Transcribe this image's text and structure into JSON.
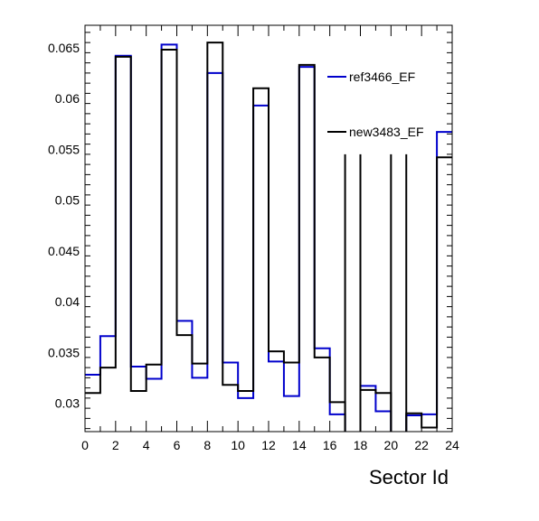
{
  "chart_data": {
    "type": "line",
    "step": true,
    "xlabel": "Sector Id",
    "ylabel": "",
    "xlim": [
      0,
      24
    ],
    "ylim": [
      0.0272,
      0.0672
    ],
    "x_major_ticks": [
      0,
      2,
      4,
      6,
      8,
      10,
      12,
      14,
      16,
      18,
      20,
      22,
      24
    ],
    "y_major_ticks": [
      0.03,
      0.035,
      0.04,
      0.045,
      0.05,
      0.055,
      0.06,
      0.065
    ],
    "x_tick_labels": [
      "0",
      "2",
      "4",
      "6",
      "8",
      "10",
      "12",
      "14",
      "16",
      "18",
      "20",
      "22",
      "24"
    ],
    "y_tick_labels": [
      "0.03",
      "0.035",
      "0.04",
      "0.045",
      "0.05",
      "0.055",
      "0.06",
      "0.065"
    ],
    "grid": false,
    "legend_position": "top-right",
    "bin_edges": [
      0,
      1,
      2,
      3,
      4,
      5,
      6,
      7,
      8,
      9,
      10,
      11,
      12,
      13,
      14,
      15,
      16,
      17,
      18,
      19,
      20,
      21,
      22,
      23,
      24
    ],
    "series": [
      {
        "name": "ref3466_EF",
        "color": "#0000cc",
        "values": [
          0.0328,
          0.0366,
          0.0642,
          0.0336,
          0.0324,
          0.0653,
          0.0381,
          0.0325,
          0.0625,
          0.034,
          0.0305,
          0.0593,
          0.0341,
          0.0307,
          0.0631,
          0.0354,
          0.0289,
          null,
          0.0317,
          0.0292,
          null,
          0.0288,
          0.0289,
          0.0567
        ]
      },
      {
        "name": "new3483_EF",
        "color": "#000000",
        "values": [
          0.031,
          0.0335,
          0.0641,
          0.0312,
          0.0338,
          0.0648,
          0.0367,
          0.0339,
          0.0655,
          0.0318,
          0.0312,
          0.061,
          0.0351,
          0.034,
          0.0633,
          0.0345,
          0.0301,
          null,
          0.0313,
          0.031,
          null,
          0.029,
          0.0276,
          0.0542
        ]
      }
    ],
    "gap_markers": [
      {
        "edge": 17,
        "top": 0.0545
      },
      {
        "edge": 18,
        "top": 0.0545
      },
      {
        "edge": 20,
        "top": 0.0545
      },
      {
        "edge": 21,
        "top": 0.0545
      }
    ]
  }
}
